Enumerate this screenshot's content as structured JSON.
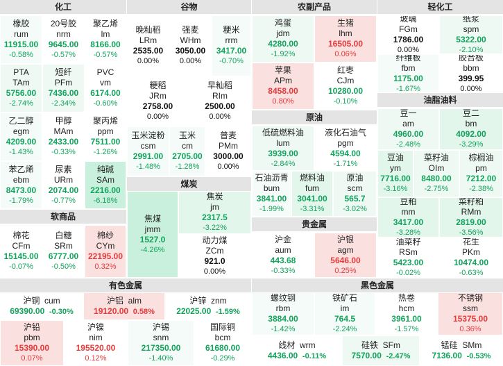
{
  "sections": {
    "huagong": "化工",
    "gukwu": "谷物",
    "nongfu": "农副产品",
    "qinggong": "轻化工",
    "youzhi": "油脂油料",
    "yuanyou": "原油",
    "meitan": "煤炭",
    "ruanshang": "软商品",
    "guijinshu": "贵金属",
    "youse": "有色金属",
    "heise": "黑色金属"
  },
  "tiles": {
    "rum": {
      "cn": "橡胶",
      "code": "rum",
      "price": "11915.00",
      "chg": "-0.58%"
    },
    "nrm": {
      "cn": "20号胶",
      "code": "nrm",
      "price": "9645.00",
      "chg": "-0.57%"
    },
    "lm": {
      "cn": "聚乙烯",
      "code": "lm",
      "price": "8166.00",
      "chg": "-0.57%"
    },
    "TAm": {
      "cn": "PTA",
      "code": "TAm",
      "price": "5756.00",
      "chg": "-2.74%"
    },
    "PFm": {
      "cn": "短纤",
      "code": "PFm",
      "price": "7436.00",
      "chg": "-2.34%"
    },
    "vm": {
      "cn": "PVC",
      "code": "vm",
      "price": "6174.00",
      "chg": "-0.60%"
    },
    "egm": {
      "cn": "乙二醇",
      "code": "egm",
      "price": "4209.00",
      "chg": "-1.43%"
    },
    "MAm": {
      "cn": "甲醇",
      "code": "MAm",
      "price": "2433.00",
      "chg": "-0.33%"
    },
    "ppm": {
      "cn": "聚丙烯",
      "code": "ppm",
      "price": "7511.00",
      "chg": "-1.26%"
    },
    "ebm": {
      "cn": "苯乙烯",
      "code": "ebm",
      "price": "8473.00",
      "chg": "-1.79%"
    },
    "URm": {
      "cn": "尿素",
      "code": "URm",
      "price": "2074.00",
      "chg": "-0.77%"
    },
    "SAm": {
      "cn": "纯碱",
      "code": "SAm",
      "price": "2216.00",
      "chg": "-6.18%"
    },
    "LRm": {
      "cn": "晚籼稻",
      "code": "LRm",
      "price": "2535.00",
      "chg": "0.00%"
    },
    "WHm": {
      "cn": "强麦",
      "code": "WHm",
      "price": "3050.00",
      "chg": "0.00%"
    },
    "rrm": {
      "cn": "粳米",
      "code": "rrm",
      "price": "3417.00",
      "chg": "-0.70%"
    },
    "JRm": {
      "cn": "粳稻",
      "code": "JRm",
      "price": "2758.00",
      "chg": "0.00%"
    },
    "RIm": {
      "cn": "早籼稻",
      "code": "RIm",
      "price": "2500.00",
      "chg": "0.00%"
    },
    "csm": {
      "cn": "玉米淀粉",
      "code": "csm",
      "price": "2991.00",
      "chg": "-1.48%"
    },
    "cm": {
      "cn": "玉米",
      "code": "cm",
      "price": "2705.00",
      "chg": "-1.28%"
    },
    "PMm": {
      "cn": "普麦",
      "code": "PMm",
      "price": "3000.00",
      "chg": "0.00%"
    },
    "jdm": {
      "cn": "鸡蛋",
      "code": "jdm",
      "price": "4280.00",
      "chg": "-1.92%"
    },
    "lhm": {
      "cn": "生猪",
      "code": "lhm",
      "price": "16505.00",
      "chg": "0.06%"
    },
    "APm": {
      "cn": "苹果",
      "code": "APm",
      "price": "8458.00",
      "chg": "0.80%"
    },
    "CJm": {
      "cn": "红枣",
      "code": "CJm",
      "price": "10280.00",
      "chg": "-0.10%"
    },
    "FGm": {
      "cn": "玻璃",
      "code": "FGm",
      "price": "1786.00",
      "chg": "0.00%"
    },
    "spm": {
      "cn": "纸浆",
      "code": "spm",
      "price": "5322.00",
      "chg": "-2.10%"
    },
    "fbm": {
      "cn": "纤维板",
      "code": "fbm",
      "price": "1175.00",
      "chg": "-1.67%"
    },
    "bbm": {
      "cn": "胶合板",
      "code": "bbm",
      "price": "399.95",
      "chg": "0.00%"
    },
    "am": {
      "cn": "豆一",
      "code": "am",
      "price": "4960.00",
      "chg": "-2.48%"
    },
    "bm": {
      "cn": "豆二",
      "code": "bm",
      "price": "4092.00",
      "chg": "-3.29%"
    },
    "ym": {
      "cn": "豆油",
      "code": "ym",
      "price": "7716.00",
      "chg": "-3.16%"
    },
    "OIm": {
      "cn": "菜籽油",
      "code": "OIm",
      "price": "8480.00",
      "chg": "-2.75%"
    },
    "pm": {
      "cn": "棕榈油",
      "code": "pm",
      "price": "7212.00",
      "chg": "-2.38%"
    },
    "mm": {
      "cn": "豆粕",
      "code": "mm",
      "price": "3417.00",
      "chg": "-3.28%"
    },
    "RMm": {
      "cn": "菜籽粕",
      "code": "RMm",
      "price": "2819.00",
      "chg": "-3.56%"
    },
    "RSm": {
      "cn": "油菜籽",
      "code": "RSm",
      "price": "5423.00",
      "chg": "-0.02%"
    },
    "PKm": {
      "cn": "花生",
      "code": "PKm",
      "price": "10474.00",
      "chg": "-0.63%"
    },
    "lum": {
      "cn": "低硫燃料油",
      "code": "lum",
      "price": "3939.00",
      "chg": "-2.84%"
    },
    "pgm": {
      "cn": "液化石油气",
      "code": "pgm",
      "price": "4594.00",
      "chg": "-1.71%"
    },
    "bum": {
      "cn": "石油沥青",
      "code": "bum",
      "price": "3841.00",
      "chg": "-1.99%"
    },
    "fum": {
      "cn": "燃料油",
      "code": "fum",
      "price": "3041.00",
      "chg": "-3.31%"
    },
    "scm": {
      "cn": "原油",
      "code": "scm",
      "price": "565.7",
      "chg": "-3.02%"
    },
    "jmm": {
      "cn": "焦煤",
      "code": "jmm",
      "price": "1527.0",
      "chg": "-4.26%"
    },
    "jm": {
      "cn": "焦炭",
      "code": "jm",
      "price": "2317.5",
      "chg": "-3.22%"
    },
    "ZCm": {
      "cn": "动力煤",
      "code": "ZCm",
      "price": "921.0",
      "chg": "0.00%"
    },
    "CFm": {
      "cn": "棉花",
      "code": "CFm",
      "price": "15145.00",
      "chg": "-0.07%"
    },
    "SRm": {
      "cn": "白糖",
      "code": "SRm",
      "price": "6777.00",
      "chg": "-0.50%"
    },
    "CYm": {
      "cn": "棉纱",
      "code": "CYm",
      "price": "22195.00",
      "chg": "0.32%"
    },
    "aum": {
      "cn": "沪金",
      "code": "aum",
      "price": "443.68",
      "chg": "-0.33%"
    },
    "agm": {
      "cn": "沪银",
      "code": "agm",
      "price": "5646.00",
      "chg": "0.25%"
    },
    "cum": {
      "cn": "沪铜",
      "code": "cum",
      "price": "69390.00",
      "chg": "-0.30%"
    },
    "alm": {
      "cn": "沪铝",
      "code": "alm",
      "price": "19120.00",
      "chg": "0.58%"
    },
    "znm": {
      "cn": "沪锌",
      "code": "znm",
      "price": "22025.00",
      "chg": "-1.59%"
    },
    "pbm": {
      "cn": "沪铅",
      "code": "pbm",
      "price": "15390.00",
      "chg": "0.07%"
    },
    "nim": {
      "cn": "沪镍",
      "code": "nim",
      "price": "195520.00",
      "chg": "0.12%"
    },
    "snm": {
      "cn": "沪锡",
      "code": "snm",
      "price": "217350.00",
      "chg": "-1.40%"
    },
    "bcm": {
      "cn": "国际铜",
      "code": "bcm",
      "price": "61680.00",
      "chg": "-0.29%"
    },
    "rbm": {
      "cn": "螺纹钢",
      "code": "rbm",
      "price": "3884.00",
      "chg": "-1.42%"
    },
    "im": {
      "cn": "铁矿石",
      "code": "im",
      "price": "764.5",
      "chg": "-2.24%"
    },
    "hcm": {
      "cn": "热卷",
      "code": "hcm",
      "price": "3961.00",
      "chg": "-1.57%"
    },
    "ssm": {
      "cn": "不锈钢",
      "code": "ssm",
      "price": "15375.00",
      "chg": "0.36%"
    },
    "wrm": {
      "cn": "线材",
      "code": "wrm",
      "price": "4436.00",
      "chg": "-0.11%"
    },
    "SFm": {
      "cn": "硅铁",
      "code": "SFm",
      "price": "7570.00",
      "chg": "-2.47%"
    },
    "SMm": {
      "cn": "锰硅",
      "code": "SMm",
      "price": "7136.00",
      "chg": "-0.53%"
    }
  },
  "colors": {
    "down": "#12a35c",
    "up": "#e83a3a",
    "flat": "#111111"
  }
}
